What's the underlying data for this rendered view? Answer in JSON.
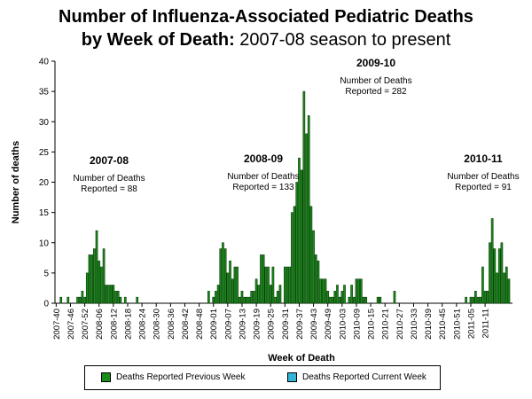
{
  "chart_data": {
    "type": "bar",
    "title_bold": "Number of Influenza-Associated Pediatric Deaths",
    "title_line2_bold": "by Week of Death:",
    "title_line2_normal": "2007-08 season to present",
    "xlabel": "Week of Death",
    "ylabel": "Number of deaths",
    "ylim": [
      0,
      40
    ],
    "yticks": [
      0,
      5,
      10,
      15,
      20,
      25,
      30,
      35,
      40
    ],
    "first_week": "2007-40",
    "xtick_labels": [
      "2007-40",
      "2007-46",
      "2007-52",
      "2008-06",
      "2008-12",
      "2008-18",
      "2008-24",
      "2008-30",
      "2008-36",
      "2008-42",
      "2008-48",
      "2009-01",
      "2009-07",
      "2009-13",
      "2009-19",
      "2009-25",
      "2009-31",
      "2009-37",
      "2009-43",
      "2009-49",
      "2010-03",
      "2010-09",
      "2010-15",
      "2010-21",
      "2010-27",
      "2010-33",
      "2010-39",
      "2010-45",
      "2010-51",
      "2011-05",
      "2011-11"
    ],
    "series": [
      {
        "name": "Deaths Reported Previous Week",
        "color": "#1a8a1a",
        "values": [
          0,
          0,
          1,
          0,
          0,
          1,
          0,
          0,
          0,
          1,
          1,
          2,
          1,
          5,
          8,
          8,
          9,
          12,
          7,
          6,
          9,
          3,
          3,
          3,
          3,
          2,
          2,
          1,
          0,
          1,
          0,
          0,
          0,
          0,
          1,
          0,
          0,
          0,
          0,
          0,
          0,
          0,
          0,
          0,
          0,
          0,
          0,
          0,
          0,
          0,
          0,
          0,
          0,
          0,
          0,
          0,
          0,
          0,
          0,
          0,
          0,
          0,
          0,
          0,
          2,
          0,
          1,
          2,
          3,
          9,
          10,
          9,
          5,
          7,
          4,
          6,
          6,
          1,
          2,
          1,
          1,
          1,
          2,
          2,
          4,
          3,
          8,
          8,
          6,
          6,
          3,
          6,
          1,
          2,
          3,
          0,
          6,
          6,
          6,
          15,
          16,
          20,
          24,
          22,
          35,
          28,
          31,
          16,
          12,
          8,
          7,
          4,
          4,
          4,
          2,
          1,
          1,
          2,
          3,
          1,
          2,
          3,
          0,
          1,
          3,
          1,
          4,
          4,
          4,
          1,
          1,
          0,
          0,
          0,
          0,
          1,
          1,
          0,
          0,
          0,
          0,
          0,
          2,
          0,
          0,
          0,
          0,
          0,
          0,
          0,
          0,
          0,
          0,
          0,
          0,
          0,
          0,
          0,
          0,
          0,
          0,
          0,
          0,
          0,
          0,
          0,
          0,
          0,
          0,
          0,
          0,
          0,
          1,
          0,
          1,
          1,
          2,
          1,
          1,
          6,
          2,
          2,
          10,
          14,
          9,
          5,
          9,
          10,
          5,
          6,
          4,
          0
        ],
        "bar_border": "#0b3d0b"
      },
      {
        "name": "Deaths Reported Current Week",
        "color": "#33b5d6",
        "bar_border": "#0b3d5a",
        "values": [
          0,
          0,
          0,
          0,
          0,
          0,
          0,
          0,
          0,
          0,
          0,
          0,
          0,
          0,
          0,
          0,
          0,
          0,
          0,
          0,
          0,
          0,
          0,
          0,
          0,
          0,
          0,
          0,
          0,
          0,
          0,
          0,
          0,
          0,
          0,
          0,
          0,
          0,
          0,
          0,
          0,
          0,
          0,
          0,
          0,
          0,
          0,
          0,
          0,
          0,
          0,
          0,
          0,
          0,
          0,
          0,
          0,
          0,
          0,
          0,
          0,
          0,
          0,
          0,
          0,
          0,
          0,
          0,
          0,
          0,
          0,
          0,
          0,
          0,
          0,
          0,
          0,
          0,
          0,
          0,
          0,
          0,
          0,
          0,
          0,
          0,
          0,
          0,
          0,
          0,
          0,
          0,
          0,
          0,
          0,
          0,
          0,
          0,
          0,
          0,
          0,
          0,
          0,
          0,
          0,
          0,
          0,
          0,
          0,
          0,
          0,
          0,
          0,
          0,
          0,
          0,
          0,
          0,
          0,
          0,
          0,
          0,
          0,
          0,
          0,
          0,
          0,
          0,
          0,
          0,
          0,
          0,
          0,
          0,
          0,
          0,
          0,
          0,
          0,
          0,
          0,
          0,
          0,
          0,
          0,
          0,
          0,
          0,
          0,
          0,
          0,
          0,
          0,
          0,
          0,
          0,
          0,
          0,
          0,
          0,
          0,
          0,
          0,
          0,
          0,
          0,
          0,
          0,
          0,
          0,
          0,
          0,
          0,
          0,
          0,
          0,
          0,
          0,
          0,
          0,
          0,
          0,
          0,
          0,
          0,
          0,
          0,
          0,
          0,
          0,
          0,
          0,
          0,
          0,
          0,
          2
        ]
      }
    ],
    "annotations": [
      {
        "season": "2007-08",
        "line1": "Number of Deaths",
        "line2": "Reported = 88"
      },
      {
        "season": "2008-09",
        "line1": "Number of Deaths",
        "line2": "Reported = 133"
      },
      {
        "season": "2009-10",
        "line1": "Number of Deaths",
        "line2": "Reported = 282"
      },
      {
        "season": "2010-11",
        "line1": "Number of Deaths",
        "line2": "Reported = 91"
      }
    ],
    "grid": false,
    "legend_position": "bottom"
  }
}
